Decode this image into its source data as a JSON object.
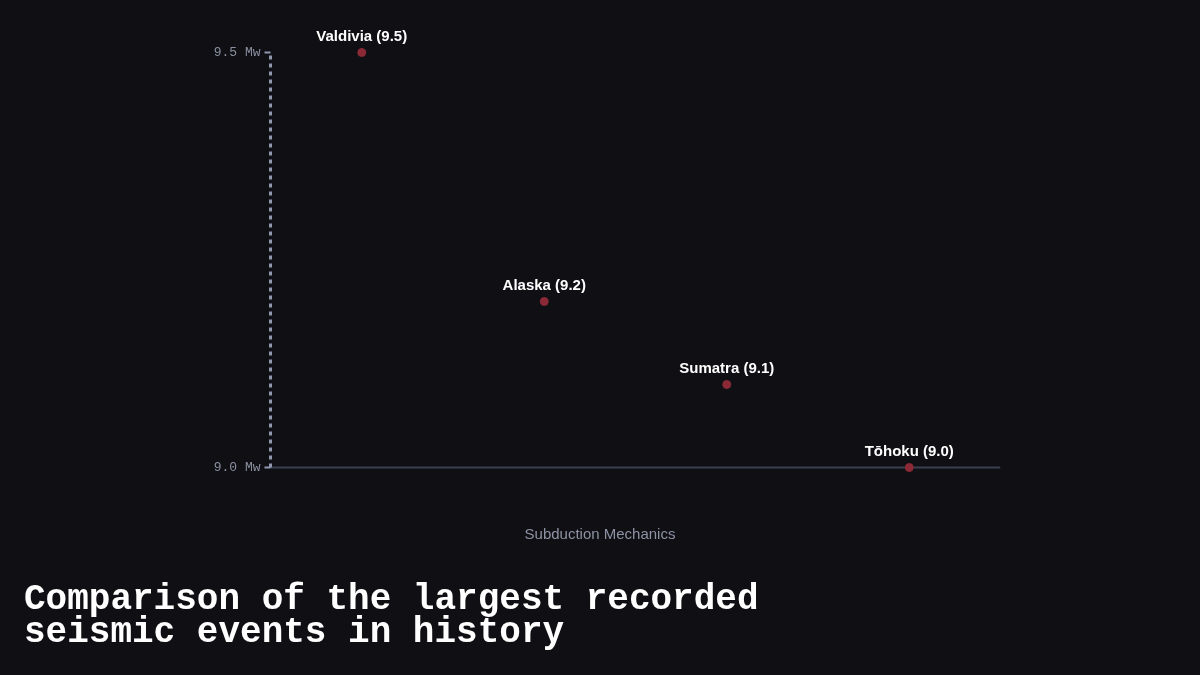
{
  "chart_data": {
    "type": "scatter",
    "title": "Comparison of the largest recorded seismic events in history",
    "categories": [
      null,
      null,
      null,
      null
    ],
    "values": [
      9.5,
      9.2,
      9.1,
      9.0
    ],
    "value_labels": [
      "Valdivia (9.5)",
      "Alaska (9.2)",
      "Sumatra (9.1)",
      "Tōhoku (9.0)"
    ],
    "color": "#8b2a36",
    "ylim": [
      9.0,
      9.5
    ],
    "yticks": [
      {
        "value": 9.0,
        "label": "9.0 Mw"
      },
      {
        "value": 9.5,
        "label": "9.5 Mw"
      }
    ],
    "tick_labels": "y",
    "grid": false,
    "marker": "circle",
    "annotations": [
      "Subduction Mechanics"
    ]
  }
}
